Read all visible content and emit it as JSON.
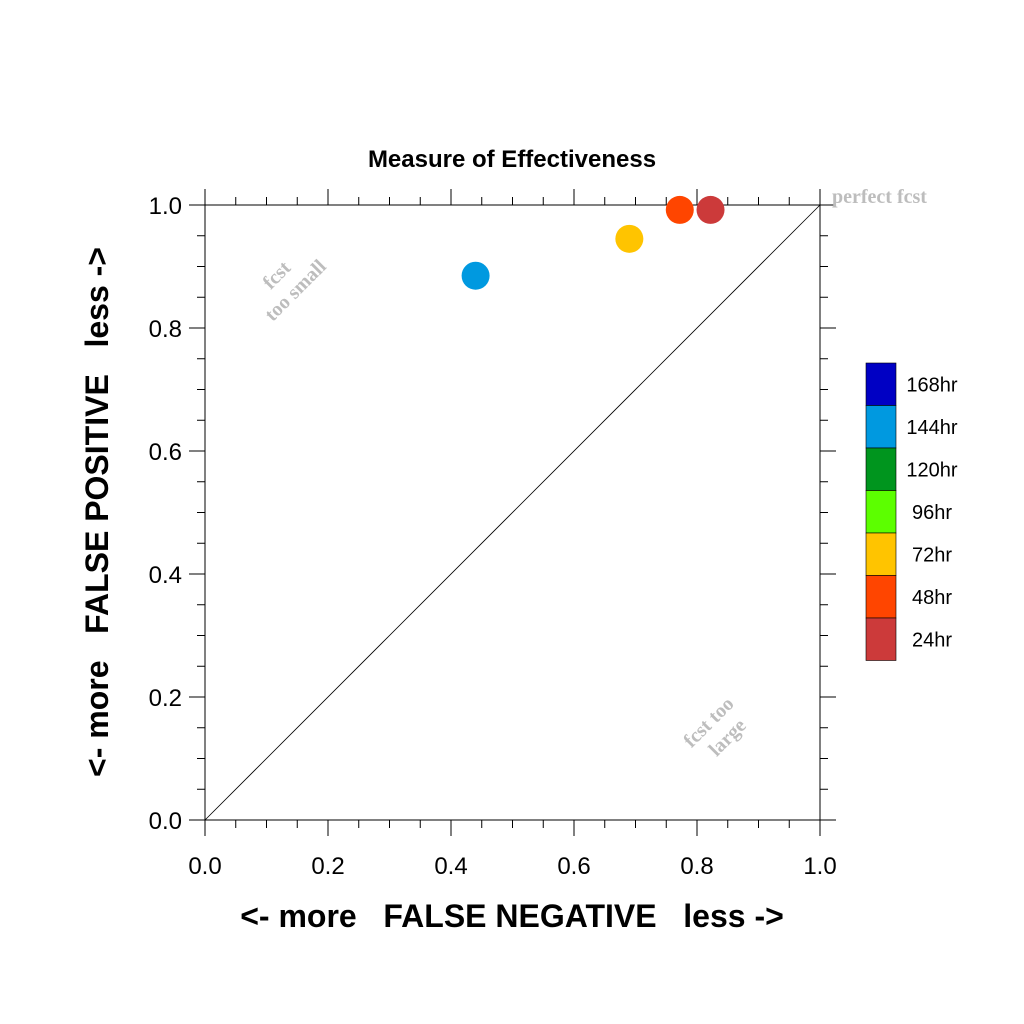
{
  "chart_data": {
    "type": "scatter",
    "title": "Measure of Effectiveness",
    "xlabel": "<- more   FALSE NEGATIVE   less ->",
    "ylabel": "<- more   FALSE POSITIVE   less ->",
    "xlim": [
      0.0,
      1.0
    ],
    "ylim": [
      0.0,
      1.0
    ],
    "x_ticks": [
      "0.0",
      "0.2",
      "0.4",
      "0.6",
      "0.8",
      "1.0"
    ],
    "y_ticks": [
      "0.0",
      "0.2",
      "0.4",
      "0.6",
      "0.8",
      "1.0"
    ],
    "grid": false,
    "diagonal_line": true,
    "legend_position": "right",
    "annotations": {
      "perfect": "perfect fcst",
      "too_small": [
        "fcst",
        "too small"
      ],
      "too_large": [
        "fcst too",
        "large"
      ]
    },
    "series": [
      {
        "name": "168hr",
        "color": "#0000c4",
        "points": []
      },
      {
        "name": "144hr",
        "color": "#0099e0",
        "points": [
          [
            0.44,
            0.885
          ]
        ]
      },
      {
        "name": "120hr",
        "color": "#00951e",
        "points": []
      },
      {
        "name": "96hr",
        "color": "#5cff00",
        "points": []
      },
      {
        "name": "72hr",
        "color": "#ffc400",
        "points": [
          [
            0.69,
            0.945
          ]
        ]
      },
      {
        "name": "48hr",
        "color": "#ff4500",
        "points": [
          [
            0.772,
            0.992
          ]
        ]
      },
      {
        "name": "24hr",
        "color": "#cc3a3a",
        "points": [
          [
            0.822,
            0.992
          ]
        ]
      }
    ]
  }
}
